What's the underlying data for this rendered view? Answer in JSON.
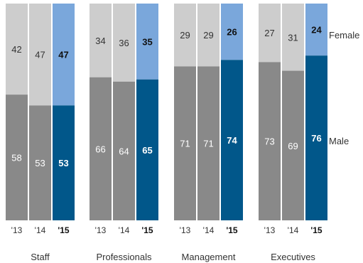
{
  "chart_data": {
    "type": "bar",
    "stacked": "percent",
    "groups": [
      "Staff",
      "Professionals",
      "Management",
      "Executives"
    ],
    "years": [
      "'13",
      "'14",
      "'15"
    ],
    "highlight_year": "'15",
    "series": [
      {
        "name": "Male",
        "values": [
          [
            58,
            53,
            53
          ],
          [
            66,
            64,
            65
          ],
          [
            71,
            71,
            74
          ],
          [
            73,
            69,
            76
          ]
        ]
      },
      {
        "name": "Female",
        "values": [
          [
            42,
            47,
            47
          ],
          [
            34,
            36,
            35
          ],
          [
            29,
            29,
            26
          ],
          [
            27,
            31,
            24
          ]
        ]
      }
    ],
    "legend": [
      "Female",
      "Male"
    ],
    "ylim": [
      0,
      100
    ],
    "grid": false,
    "colors": {
      "male_past": "#898989",
      "female_past": "#cdcdcd",
      "male_highlight": "#01578a",
      "female_highlight": "#7aa7db",
      "text_light": "#ffffff",
      "text_dark": "#333333",
      "text_bold": "#111111"
    }
  }
}
